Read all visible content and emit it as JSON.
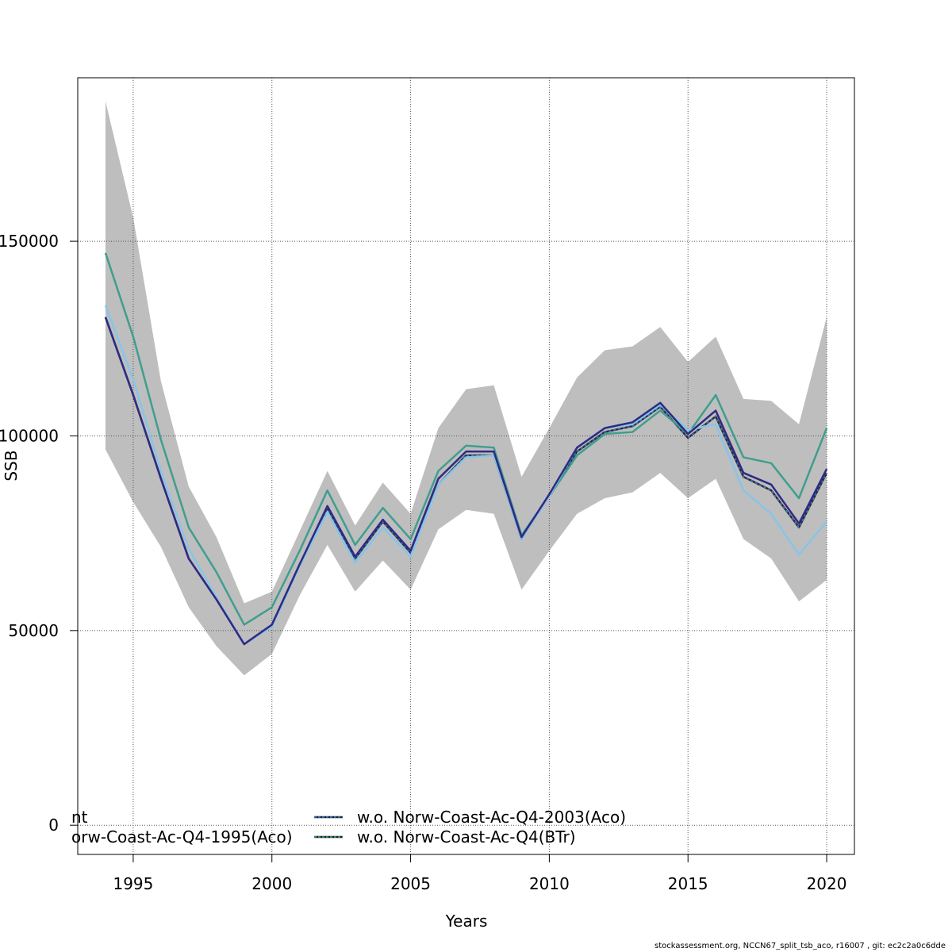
{
  "chart_data": {
    "type": "line",
    "xlabel": "Years",
    "ylabel": "SSB",
    "xlim": [
      1993,
      2021
    ],
    "ylim": [
      -7500,
      192000
    ],
    "x_ticks": [
      1995,
      2000,
      2005,
      2010,
      2015,
      2020
    ],
    "y_ticks": [
      0,
      50000,
      100000,
      150000
    ],
    "x_tick_labels": [
      "1995",
      "2000",
      "2005",
      "2010",
      "2015",
      "2020"
    ],
    "y_tick_labels": [
      "0",
      "50000",
      "100000",
      "150000"
    ],
    "grid": true,
    "legend_position": "bottom",
    "x": [
      1994,
      1995,
      1996,
      1997,
      1998,
      1999,
      2000,
      2001,
      2002,
      2003,
      2004,
      2005,
      2006,
      2007,
      2008,
      2009,
      2010,
      2011,
      2012,
      2013,
      2014,
      2015,
      2016,
      2017,
      2018,
      2019,
      2020
    ],
    "band": {
      "color": "#bebebe",
      "lower": [
        96500,
        83000,
        71500,
        56000,
        46000,
        38500,
        44000,
        59000,
        72000,
        60000,
        68000,
        60500,
        76000,
        81000,
        80000,
        60500,
        70500,
        80000,
        84000,
        85500,
        90500,
        84000,
        89000,
        73500,
        68500,
        57500,
        63000
      ],
      "upper": [
        186000,
        156000,
        114000,
        87000,
        74000,
        57000,
        60000,
        75500,
        91000,
        77000,
        88000,
        80000,
        102000,
        112000,
        113000,
        89500,
        102000,
        115000,
        122000,
        123000,
        128000,
        119000,
        125500,
        109500,
        109000,
        103000,
        130500
      ]
    },
    "series": [
      {
        "color": "#2b2b2b",
        "dashed": false,
        "values": [
          130500,
          110500,
          89000,
          68500,
          58000,
          46500,
          51500,
          67000,
          81500,
          68500,
          78000,
          70000,
          87500,
          95000,
          95000,
          73500,
          85000,
          96000,
          101000,
          102500,
          107500,
          99500,
          105000,
          89500,
          86000,
          76500,
          90500
        ]
      },
      {
        "color": "#3b7dd8",
        "dashed": true,
        "values": [
          130500,
          110500,
          89000,
          68500,
          58000,
          46500,
          51500,
          67000,
          81500,
          68500,
          78000,
          70000,
          87500,
          95000,
          95000,
          73500,
          85000,
          96000,
          101000,
          102500,
          107500,
          99500,
          105000,
          89500,
          86000,
          76500,
          90500
        ]
      },
      {
        "color": "#3f9e8e",
        "dashed": false,
        "values": [
          147000,
          125500,
          99000,
          76500,
          65000,
          51500,
          56000,
          70500,
          86000,
          72000,
          81500,
          73500,
          91000,
          97500,
          97000,
          74500,
          84500,
          95000,
          100500,
          101000,
          106500,
          100500,
          110500,
          94500,
          93000,
          84000,
          102000
        ]
      },
      {
        "color": "#87c5e8",
        "dashed": false,
        "values": [
          133500,
          114500,
          91000,
          71000,
          58500,
          46500,
          51000,
          66500,
          80500,
          67500,
          76500,
          69000,
          87500,
          94500,
          95000,
          73500,
          84500,
          97000,
          102000,
          103000,
          108000,
          101500,
          103000,
          86000,
          80000,
          69500,
          78000
        ]
      },
      {
        "color": "#2e2a85",
        "dashed": false,
        "values": [
          130500,
          110500,
          89000,
          68500,
          58000,
          46500,
          51500,
          67000,
          82000,
          69000,
          78500,
          70500,
          89000,
          96000,
          96000,
          74000,
          85000,
          97000,
          102000,
          103500,
          108500,
          100500,
          106500,
          90500,
          87500,
          77500,
          91500
        ]
      }
    ],
    "legend": [
      {
        "text": "nt",
        "color": "#000000",
        "dashed": false
      },
      {
        "text": "orw-Coast-Ac-Q4-1995(Aco)",
        "color": "#000000",
        "dashed": false
      },
      {
        "text": "w.o. Norw-Coast-Ac-Q4-2003(Aco)",
        "color": "#3b7dd8",
        "dashed": true
      },
      {
        "text": "w.o. Norw-Coast-Ac-Q4(BTr)",
        "color": "#3f9e8e",
        "dashed": true
      }
    ]
  },
  "footer": "stockassessment.org, NCCN67_split_tsb_aco, r16007 , git: ec2c2a0c6dde"
}
